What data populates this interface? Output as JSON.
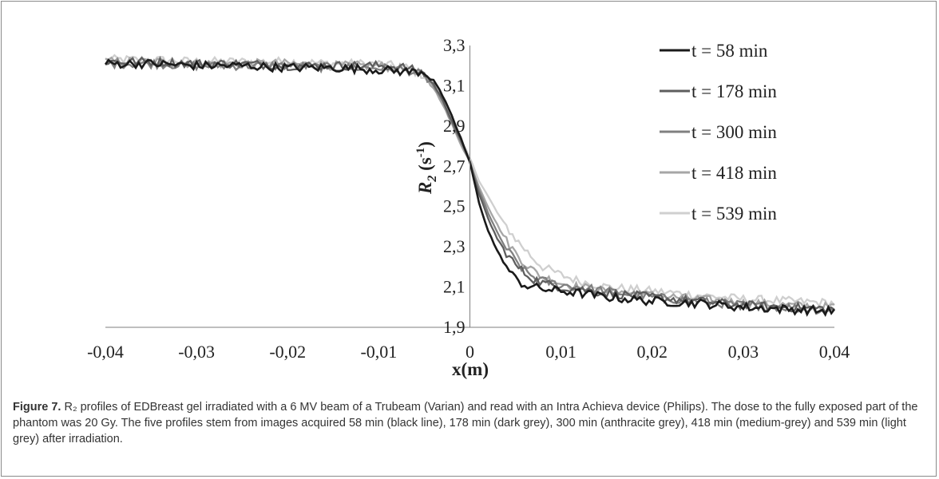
{
  "chart_data": {
    "type": "line",
    "xlabel": "x(m)",
    "ylabel": "R",
    "ylabel_subscript": "2",
    "ylabel_unit": " (s",
    "ylabel_unit_sup": "-1",
    "ylabel_unit_close": ")",
    "xlim": [
      -0.04,
      0.04
    ],
    "ylim": [
      1.9,
      3.3
    ],
    "x_ticks": [
      -0.04,
      -0.03,
      -0.02,
      -0.01,
      0,
      0.01,
      0.02,
      0.03,
      0.04
    ],
    "x_tick_labels": [
      "-0,04",
      "-0,03",
      "-0,02",
      "-0,01",
      "0",
      "0,01",
      "0,02",
      "0,03",
      "0,04"
    ],
    "y_ticks": [
      1.9,
      2.1,
      2.3,
      2.5,
      2.7,
      2.9,
      3.1,
      3.3
    ],
    "y_tick_labels": [
      "1,9",
      "2,1",
      "2,3",
      "2,5",
      "2,7",
      "2,9",
      "3,1",
      "3,3"
    ],
    "grid": false,
    "legend_position": "right",
    "x": [
      -0.04,
      -0.035,
      -0.03,
      -0.025,
      -0.02,
      -0.015,
      -0.01,
      -0.007,
      -0.005,
      -0.004,
      -0.003,
      -0.002,
      -0.001,
      0,
      0.001,
      0.002,
      0.003,
      0.004,
      0.005,
      0.006,
      0.007,
      0.008,
      0.01,
      0.012,
      0.015,
      0.02,
      0.025,
      0.03,
      0.035,
      0.04
    ],
    "series": [
      {
        "name": "t = 58 min",
        "color": "#1a1a1a",
        "values": [
          3.21,
          3.21,
          3.2,
          3.2,
          3.19,
          3.19,
          3.18,
          3.17,
          3.17,
          3.13,
          3.05,
          2.95,
          2.84,
          2.72,
          2.52,
          2.38,
          2.28,
          2.2,
          2.14,
          2.11,
          2.1,
          2.09,
          2.08,
          2.07,
          2.05,
          2.03,
          2.02,
          2.0,
          1.99,
          1.98
        ]
      },
      {
        "name": "t = 178 min",
        "color": "#5e5e5e",
        "values": [
          3.22,
          3.22,
          3.21,
          3.21,
          3.2,
          3.2,
          3.2,
          3.19,
          3.16,
          3.11,
          3.03,
          2.93,
          2.83,
          2.72,
          2.56,
          2.44,
          2.34,
          2.27,
          2.21,
          2.17,
          2.14,
          2.12,
          2.1,
          2.09,
          2.07,
          2.05,
          2.03,
          2.01,
          2.0,
          1.99
        ]
      },
      {
        "name": "t = 300 min",
        "color": "#808080",
        "values": [
          3.21,
          3.21,
          3.2,
          3.2,
          3.2,
          3.19,
          3.19,
          3.18,
          3.15,
          3.1,
          3.02,
          2.92,
          2.82,
          2.72,
          2.58,
          2.47,
          2.37,
          2.29,
          2.23,
          2.18,
          2.15,
          2.13,
          2.11,
          2.1,
          2.08,
          2.05,
          2.03,
          2.01,
          2.0,
          1.98
        ]
      },
      {
        "name": "t = 418 min",
        "color": "#a6a6a6",
        "values": [
          3.22,
          3.22,
          3.21,
          3.21,
          3.21,
          3.2,
          3.2,
          3.18,
          3.14,
          3.09,
          3.01,
          2.91,
          2.81,
          2.72,
          2.6,
          2.5,
          2.41,
          2.33,
          2.27,
          2.22,
          2.18,
          2.15,
          2.12,
          2.1,
          2.08,
          2.06,
          2.04,
          2.02,
          2.01,
          2.0
        ]
      },
      {
        "name": "t = 539 min",
        "color": "#cfcfcf",
        "values": [
          3.23,
          3.23,
          3.22,
          3.22,
          3.22,
          3.21,
          3.21,
          3.19,
          3.15,
          3.09,
          3.01,
          2.92,
          2.83,
          2.74,
          2.63,
          2.55,
          2.47,
          2.4,
          2.34,
          2.29,
          2.24,
          2.2,
          2.16,
          2.13,
          2.1,
          2.08,
          2.06,
          2.04,
          2.03,
          2.02
        ]
      }
    ]
  },
  "caption": {
    "label": "Figure 7.",
    "text": " R₂ profiles of EDBreast gel irradiated with a 6 MV beam of a Trubeam (Varian) and read with an Intra Achieva device (Philips). The dose to the fully exposed part of the phantom was 20 Gy. The five profiles stem from images acquired 58 min (black line), 178 min (dark grey), 300 min (anthracite grey), 418 min (medium-grey) and 539 min (light grey) after irradiation."
  }
}
